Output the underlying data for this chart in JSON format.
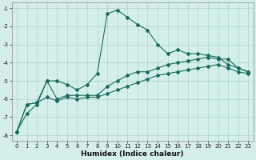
{
  "xlabel": "Humidex (Indice chaleur)",
  "ylabel": "",
  "background_color": "#d4efeb",
  "grid_color": "#aad4cc",
  "line_color": "#1a6b5a",
  "xlim": [
    -0.5,
    23.5
  ],
  "ylim": [
    -8.3,
    -0.7
  ],
  "yticks": [
    -8,
    -7,
    -6,
    -5,
    -4,
    -3,
    -2,
    -1
  ],
  "xticks": [
    0,
    1,
    2,
    3,
    4,
    5,
    6,
    7,
    8,
    9,
    10,
    11,
    12,
    13,
    14,
    15,
    16,
    17,
    18,
    19,
    20,
    21,
    22,
    23
  ],
  "line1_x": [
    0,
    1,
    2,
    3,
    4,
    5,
    6,
    7,
    8,
    9,
    10,
    11,
    12,
    13,
    14,
    15,
    16,
    17,
    18,
    19,
    20,
    21,
    22,
    23
  ],
  "line1_y": [
    -7.8,
    -6.8,
    -6.3,
    -5.0,
    -5.0,
    -5.2,
    -5.5,
    -5.2,
    -4.6,
    -1.3,
    -1.1,
    -1.5,
    -1.9,
    -2.2,
    -3.0,
    -3.5,
    -3.3,
    -3.5,
    -3.5,
    -3.6,
    -3.7,
    -4.1,
    -4.3,
    -4.5
  ],
  "line2_x": [
    0,
    1,
    2,
    3,
    4,
    5,
    6,
    7,
    8,
    9,
    10,
    11,
    12,
    13,
    14,
    15,
    16,
    17,
    18,
    19,
    20,
    21,
    22,
    23
  ],
  "line2_y": [
    -7.8,
    -6.3,
    -6.2,
    -5.0,
    -6.0,
    -5.8,
    -5.8,
    -5.8,
    -5.8,
    -5.3,
    -5.0,
    -4.7,
    -4.5,
    -4.5,
    -4.3,
    -4.1,
    -4.0,
    -3.9,
    -3.8,
    -3.7,
    -3.8,
    -3.8,
    -4.3,
    -4.5
  ],
  "line3_x": [
    0,
    1,
    2,
    3,
    4,
    5,
    6,
    7,
    8,
    9,
    10,
    11,
    12,
    13,
    14,
    15,
    16,
    17,
    18,
    19,
    20,
    21,
    22,
    23
  ],
  "line3_y": [
    -7.8,
    -6.3,
    -6.2,
    -5.9,
    -6.1,
    -5.9,
    -6.0,
    -5.9,
    -5.9,
    -5.7,
    -5.5,
    -5.3,
    -5.1,
    -4.9,
    -4.7,
    -4.6,
    -4.5,
    -4.4,
    -4.3,
    -4.2,
    -4.1,
    -4.3,
    -4.5,
    -4.6
  ]
}
